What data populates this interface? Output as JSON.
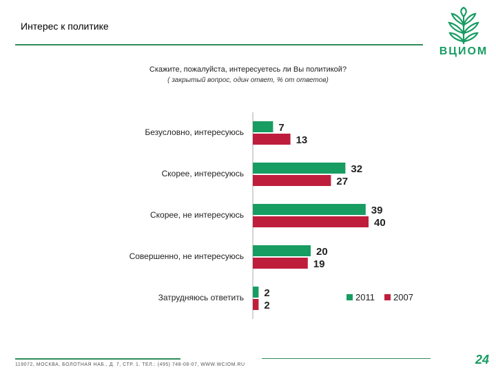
{
  "header": {
    "title": "Интерес к политике",
    "logo_text": "ВЦИОМ"
  },
  "question": "Скажите, пожалуйста, интересуетесь ли Вы политикой?",
  "subquestion": "( закрытый вопрос, один ответ, % от ответов)",
  "footer": {
    "address": "119072, МОСКВА, БОЛОТНАЯ НАБ., Д. 7, СТР. 1. ТЕЛ.: (495) 748-08-07, WWW.WCIOM.RU",
    "page_number": "24"
  },
  "colors": {
    "series_2011": "#179c62",
    "series_2007": "#be1e3c",
    "accent": "#2f8a5a"
  },
  "chart_data": {
    "type": "bar",
    "orientation": "horizontal",
    "categories": [
      "Безусловно, интересуюсь",
      "Скорее, интересуюсь",
      "Скорее, не интересуюсь",
      "Совершенно, не интересуюсь",
      "Затрудняюсь ответить"
    ],
    "series": [
      {
        "name": "2011",
        "color": "#179c62",
        "values": [
          7,
          32,
          39,
          20,
          2
        ]
      },
      {
        "name": "2007",
        "color": "#be1e3c",
        "values": [
          13,
          27,
          40,
          19,
          2
        ]
      }
    ],
    "xlim": [
      0,
      45
    ],
    "grid": false,
    "legend_position": "bottom-right"
  }
}
